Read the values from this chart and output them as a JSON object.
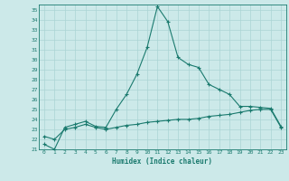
{
  "title": "",
  "xlabel": "Humidex (Indice chaleur)",
  "xlim": [
    -0.5,
    23.5
  ],
  "ylim": [
    21,
    35.5
  ],
  "yticks": [
    21,
    22,
    23,
    24,
    25,
    26,
    27,
    28,
    29,
    30,
    31,
    32,
    33,
    34,
    35
  ],
  "xticks": [
    0,
    1,
    2,
    3,
    4,
    5,
    6,
    7,
    8,
    9,
    10,
    11,
    12,
    13,
    14,
    15,
    16,
    17,
    18,
    19,
    20,
    21,
    22,
    23
  ],
  "bg_color": "#cce9e9",
  "line_color": "#1a7a6e",
  "grid_color": "#aad4d4",
  "line1_x": [
    0,
    1,
    2,
    3,
    4,
    5,
    6,
    7,
    8,
    9,
    10,
    11,
    12,
    13,
    14,
    15,
    16,
    17,
    18,
    19,
    20,
    21,
    22,
    23
  ],
  "line1_y": [
    21.5,
    21.0,
    23.2,
    23.5,
    23.8,
    23.3,
    23.2,
    25.0,
    26.5,
    28.5,
    31.2,
    35.3,
    33.8,
    30.2,
    29.5,
    29.2,
    27.5,
    27.0,
    26.5,
    25.3,
    25.3,
    25.2,
    25.1,
    23.3
  ],
  "line2_x": [
    0,
    1,
    2,
    3,
    4,
    5,
    6,
    7,
    8,
    9,
    10,
    11,
    12,
    13,
    14,
    15,
    16,
    17,
    18,
    19,
    20,
    21,
    22,
    23
  ],
  "line2_y": [
    22.3,
    22.0,
    23.0,
    23.2,
    23.5,
    23.2,
    23.0,
    23.2,
    23.4,
    23.5,
    23.7,
    23.8,
    23.9,
    24.0,
    24.0,
    24.1,
    24.3,
    24.4,
    24.5,
    24.7,
    24.9,
    25.0,
    25.0,
    23.2
  ]
}
